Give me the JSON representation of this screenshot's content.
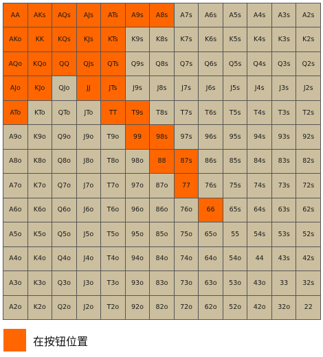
{
  "colors": {
    "in_range": "#ff6600",
    "out_range": "#cbbf9f"
  },
  "grid": {
    "rows": [
      [
        "AA",
        "AKs",
        "AQs",
        "AJs",
        "ATs",
        "A9s",
        "A8s",
        "A7s",
        "A6s",
        "A5s",
        "A4s",
        "A3s",
        "A2s"
      ],
      [
        "AKo",
        "KK",
        "KQs",
        "KJs",
        "KTs",
        "K9s",
        "K8s",
        "K7s",
        "K6s",
        "K5s",
        "K4s",
        "K3s",
        "K2s"
      ],
      [
        "AQo",
        "KQo",
        "QQ",
        "QJs",
        "QTs",
        "Q9s",
        "Q8s",
        "Q7s",
        "Q6s",
        "Q5s",
        "Q4s",
        "Q3s",
        "Q2s"
      ],
      [
        "AJo",
        "KJo",
        "QJo",
        "JJ",
        "JTs",
        "J9s",
        "J8s",
        "J7s",
        "J6s",
        "J5s",
        "J4s",
        "J3s",
        "J2s"
      ],
      [
        "ATo",
        "KTo",
        "QTo",
        "JTo",
        "TT",
        "T9s",
        "T8s",
        "T7s",
        "T6s",
        "T5s",
        "T4s",
        "T3s",
        "T2s"
      ],
      [
        "A9o",
        "K9o",
        "Q9o",
        "J9o",
        "T9o",
        "99",
        "98s",
        "97s",
        "96s",
        "95s",
        "94s",
        "93s",
        "92s"
      ],
      [
        "A8o",
        "K8o",
        "Q8o",
        "J8o",
        "T8o",
        "98o",
        "88",
        "87s",
        "86s",
        "85s",
        "84s",
        "83s",
        "82s"
      ],
      [
        "A7o",
        "K7o",
        "Q7o",
        "J7o",
        "T7o",
        "97o",
        "87o",
        "77",
        "76s",
        "75s",
        "74s",
        "73s",
        "72s"
      ],
      [
        "A6o",
        "K6o",
        "Q6o",
        "J6o",
        "T6o",
        "96o",
        "86o",
        "76o",
        "66",
        "65s",
        "64s",
        "63s",
        "62s"
      ],
      [
        "A5o",
        "K5o",
        "Q5o",
        "J5o",
        "T5o",
        "95o",
        "85o",
        "75o",
        "65o",
        "55",
        "54s",
        "53s",
        "52s"
      ],
      [
        "A4o",
        "K4o",
        "Q4o",
        "J4o",
        "T4o",
        "94o",
        "84o",
        "74o",
        "64o",
        "54o",
        "44",
        "43s",
        "42s"
      ],
      [
        "A3o",
        "K3o",
        "Q3o",
        "J3o",
        "T3o",
        "93o",
        "83o",
        "73o",
        "63o",
        "53o",
        "43o",
        "33",
        "32s"
      ],
      [
        "A2o",
        "K2o",
        "Q2o",
        "J2o",
        "T2o",
        "92o",
        "82o",
        "72o",
        "62o",
        "52o",
        "42o",
        "32o",
        "22"
      ]
    ],
    "highlighted": [
      "AA",
      "AKs",
      "AQs",
      "AJs",
      "ATs",
      "A9s",
      "A8s",
      "AKo",
      "KK",
      "KQs",
      "KJs",
      "KTs",
      "AQo",
      "KQo",
      "QQ",
      "QJs",
      "QTs",
      "AJo",
      "KJo",
      "JJ",
      "JTs",
      "ATo",
      "TT",
      "T9s",
      "99",
      "98s",
      "88",
      "87s",
      "77",
      "66"
    ]
  },
  "legend": {
    "label": "在按钮位置",
    "color": "#ff6600"
  }
}
